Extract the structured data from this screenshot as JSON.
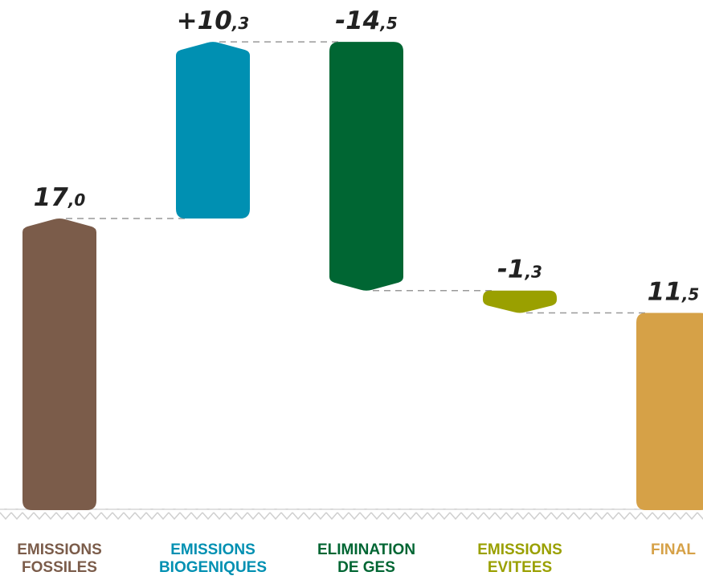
{
  "chart_data": {
    "type": "waterfall",
    "categories": [
      "EMISSIONS\nFOSSILES",
      "EMISSIONS\nBIOGENIQUES",
      "ELIMINATION\nDE GES",
      "EMISSIONS\nEVITEES",
      "FINAL"
    ],
    "values": [
      17.0,
      10.3,
      -14.5,
      -1.3,
      11.5
    ],
    "value_labels": [
      "17,0",
      "+10,3",
      "-14,5",
      "-1,3",
      "11,5"
    ],
    "measure": [
      "absolute",
      "relative",
      "relative",
      "relative",
      "total"
    ],
    "colors": [
      "#7b5c4a",
      "#0090b2",
      "#006633",
      "#9aa000",
      "#d6a147"
    ]
  }
}
